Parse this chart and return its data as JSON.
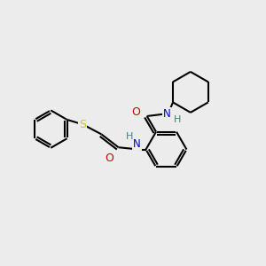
{
  "bg_color": "#ececec",
  "atom_colors": {
    "C": "#000000",
    "N": "#0000cc",
    "O": "#cc0000",
    "S": "#cccc00",
    "H": "#408080"
  },
  "bond_color": "#000000",
  "line_width": 1.5,
  "figsize": [
    3.0,
    3.0
  ],
  "dpi": 100,
  "font_size": 8.5
}
